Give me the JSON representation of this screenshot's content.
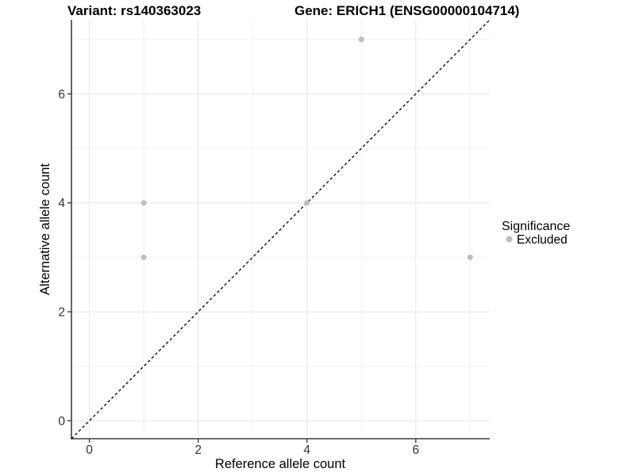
{
  "header": {
    "title_variant": "Variant: rs140363023",
    "title_gene": "Gene: ERICH1 (ENSG00000104714)"
  },
  "chart_data": {
    "type": "scatter",
    "title_left": "Variant: rs140363023",
    "title_right": "Gene: ERICH1 (ENSG00000104714)",
    "xlabel": "Reference allele count",
    "ylabel": "Alternative allele count",
    "xlim": [
      -0.33,
      7.36
    ],
    "ylim": [
      -0.33,
      7.36
    ],
    "xticks": [
      0,
      2,
      4,
      6
    ],
    "yticks": [
      0,
      2,
      4,
      6
    ],
    "minor_gridlines_x": [
      1,
      3,
      5,
      7
    ],
    "minor_gridlines_y": [
      1,
      3,
      5,
      7
    ],
    "grid": "major-and-minor",
    "series": [
      {
        "name": "Excluded",
        "color": "#bebebe",
        "marker": "circle",
        "points": [
          [
            1,
            3
          ],
          [
            1,
            4
          ],
          [
            4,
            4
          ],
          [
            5,
            7
          ],
          [
            7,
            3
          ]
        ]
      }
    ],
    "identity_line": {
      "equation": "y = x",
      "style": "dashed",
      "color": "#000000"
    },
    "legend": {
      "position": "right",
      "title": "Significance",
      "items": [
        {
          "label": "Excluded",
          "color": "#bebebe"
        }
      ]
    }
  },
  "colors": {
    "background": "#ffffff",
    "grid_major": "#e8e8e8",
    "grid_minor": "#f1f1f1",
    "axis_line": "#3f3f3f",
    "tick_label": "#333333",
    "title": "#000000",
    "point": "#bebebe"
  }
}
